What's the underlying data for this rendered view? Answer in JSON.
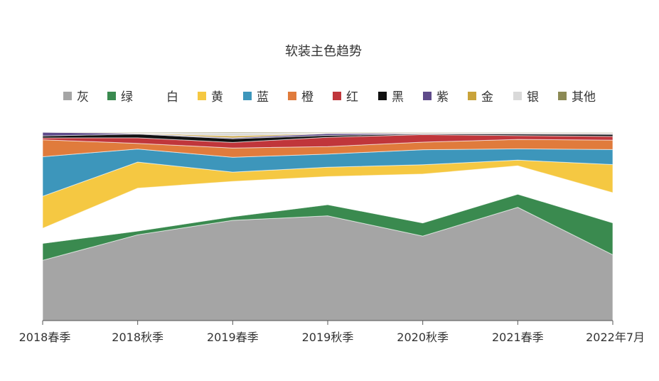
{
  "chart_data": {
    "type": "area",
    "stacked": true,
    "normalized": true,
    "title": "软装主色趋势",
    "xlabel": "",
    "ylabel": "",
    "ylim": [
      0,
      100
    ],
    "grid": false,
    "legend_position": "top",
    "categories": [
      "2018春季",
      "2018秋季",
      "2019春季",
      "2019秋季",
      "2020秋季",
      "2021春季",
      "2022年7月"
    ],
    "series": [
      {
        "name": "灰",
        "color": "#a5a5a5",
        "values": [
          32,
          46,
          54,
          56,
          45,
          60,
          35
        ]
      },
      {
        "name": "绿",
        "color": "#3a8a4f",
        "values": [
          9,
          2,
          2,
          6,
          7,
          7,
          17
        ]
      },
      {
        "name": "白",
        "color": "#ffffff",
        "values": [
          8,
          23,
          19,
          15,
          26,
          15,
          16
        ]
      },
      {
        "name": "黄",
        "color": "#f5c842",
        "values": [
          17,
          14,
          5,
          5,
          5,
          3,
          15
        ]
      },
      {
        "name": "蓝",
        "color": "#3d96bb",
        "values": [
          21,
          7,
          8,
          7,
          8,
          6,
          8
        ]
      },
      {
        "name": "橙",
        "color": "#e07b3c",
        "values": [
          9,
          3,
          5,
          4,
          4,
          5,
          5
        ]
      },
      {
        "name": "红",
        "color": "#c0363b",
        "values": [
          1,
          3,
          3,
          5,
          4,
          2,
          2
        ]
      },
      {
        "name": "黑",
        "color": "#111111",
        "values": [
          1,
          2,
          2,
          1,
          0.4,
          0.8,
          1
        ]
      },
      {
        "name": "紫",
        "color": "#5e4a8a",
        "values": [
          2,
          0.3,
          0.5,
          1,
          0.3,
          0.4,
          0.4
        ]
      },
      {
        "name": "金",
        "color": "#c9a33a",
        "values": [
          0,
          0.2,
          1,
          0.2,
          0.2,
          0.2,
          0.3
        ]
      },
      {
        "name": "银",
        "color": "#d9d9d9",
        "values": [
          0,
          0.2,
          1.5,
          0.2,
          0.2,
          0.2,
          0.3
        ]
      },
      {
        "name": "其他",
        "color": "#8c8a55",
        "values": [
          0,
          0.3,
          0.5,
          0.3,
          0.2,
          0.2,
          0.2
        ]
      }
    ]
  }
}
